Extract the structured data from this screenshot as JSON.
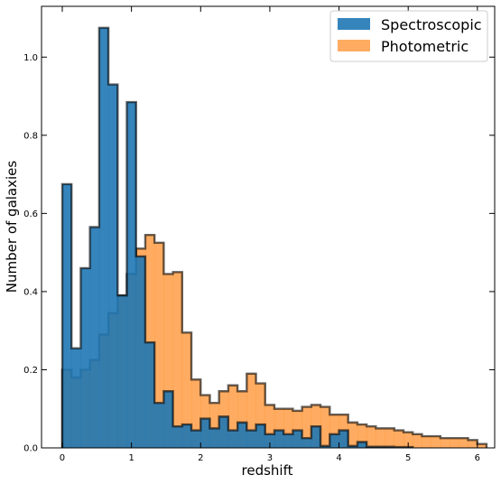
{
  "chart_data": {
    "type": "histogram",
    "title": "",
    "xlabel": "redshift",
    "ylabel": "Number of galaxies",
    "xlim": [
      -0.3,
      6.25
    ],
    "ylim": [
      0,
      1.13
    ],
    "xticks": [
      0,
      1,
      2,
      3,
      4,
      5,
      6
    ],
    "yticks": [
      0.0,
      0.2,
      0.4,
      0.6,
      0.8,
      1.0
    ],
    "ytick_labels": [
      "0.0",
      "0.2",
      "0.4",
      "0.6",
      "0.8",
      "1.0"
    ],
    "bin_width": 0.1333,
    "grid": false,
    "legend_position": "top-right",
    "series": [
      {
        "name": "Spectroscopic",
        "color": "#1f77b4",
        "bin_start": 0.0,
        "values": [
          0.675,
          0.255,
          0.46,
          0.565,
          1.075,
          0.93,
          0.39,
          0.885,
          0.49,
          0.27,
          0.115,
          0.145,
          0.055,
          0.06,
          0.045,
          0.075,
          0.05,
          0.08,
          0.045,
          0.065,
          0.045,
          0.06,
          0.035,
          0.045,
          0.035,
          0.045,
          0.025,
          0.055,
          0.005,
          0.035,
          0.045,
          0.005,
          0.015,
          0.003,
          0.003,
          0.003,
          0.002,
          0.002
        ]
      },
      {
        "name": "Photometric",
        "color": "#ff7f0e",
        "bin_start": 0.0,
        "values": [
          0.2,
          0.18,
          0.2,
          0.225,
          0.29,
          0.345,
          0.39,
          0.445,
          0.51,
          0.545,
          0.525,
          0.445,
          0.45,
          0.295,
          0.175,
          0.135,
          0.115,
          0.145,
          0.16,
          0.145,
          0.19,
          0.165,
          0.11,
          0.1,
          0.1,
          0.095,
          0.105,
          0.11,
          0.105,
          0.085,
          0.085,
          0.065,
          0.06,
          0.055,
          0.05,
          0.05,
          0.045,
          0.04,
          0.035,
          0.03,
          0.03,
          0.025,
          0.025,
          0.025,
          0.02,
          0.01
        ]
      }
    ]
  }
}
